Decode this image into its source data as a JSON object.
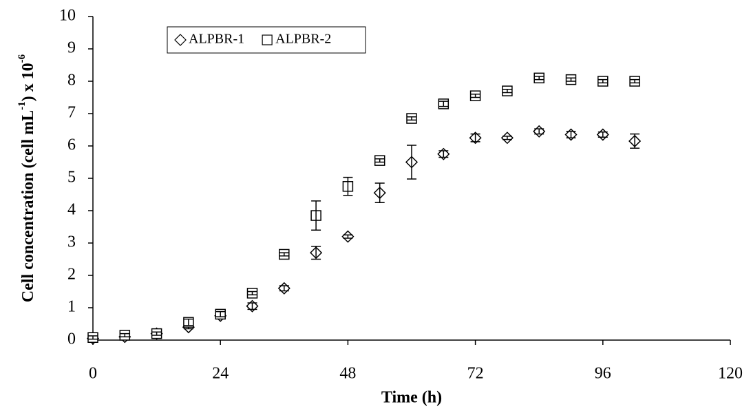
{
  "chart_data": {
    "type": "scatter",
    "xlabel": "Time (h)",
    "ylabel": [
      "Cell concentration (cell mL",
      "-1",
      ") x 10",
      "-6"
    ],
    "x": [
      0,
      6,
      12,
      18,
      24,
      30,
      36,
      42,
      48,
      54,
      60,
      66,
      72,
      78,
      84,
      90,
      96,
      102
    ],
    "series": [
      {
        "name": "ALPBR-1",
        "marker": "diamond",
        "color": "#000000",
        "values": [
          0.05,
          0.1,
          0.2,
          0.4,
          0.75,
          1.05,
          1.6,
          2.7,
          3.2,
          4.55,
          5.5,
          5.75,
          6.25,
          6.25,
          6.45,
          6.35,
          6.35,
          6.15
        ],
        "errors": [
          0.05,
          0.05,
          0.05,
          0.05,
          0.08,
          0.1,
          0.08,
          0.2,
          0.05,
          0.3,
          0.52,
          0.1,
          0.12,
          0.05,
          0.08,
          0.1,
          0.08,
          0.22
        ]
      },
      {
        "name": "ALPBR-2",
        "marker": "square",
        "color": "#000000",
        "values": [
          0.08,
          0.15,
          0.2,
          0.55,
          0.8,
          1.45,
          2.65,
          3.85,
          4.75,
          5.55,
          6.85,
          7.3,
          7.55,
          7.7,
          8.1,
          8.05,
          8.0,
          8.0
        ],
        "errors": [
          0.05,
          0.05,
          0.05,
          0.1,
          0.08,
          0.05,
          0.05,
          0.45,
          0.28,
          0.05,
          0.05,
          0.08,
          0.05,
          0.05,
          0.05,
          0.05,
          0.05,
          0.05
        ]
      }
    ],
    "xlim": [
      0,
      120
    ],
    "xticks": [
      0,
      24,
      48,
      72,
      96,
      120
    ],
    "ylim": [
      0,
      10
    ],
    "yticks": [
      0,
      1,
      2,
      3,
      4,
      5,
      6,
      7,
      8,
      9,
      10
    ],
    "legend": "upper-left"
  }
}
